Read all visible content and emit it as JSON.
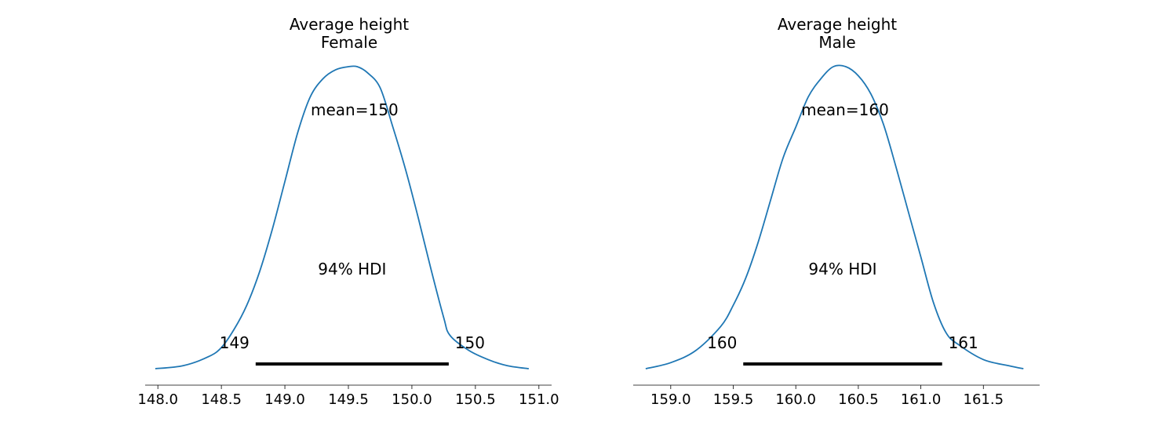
{
  "chart_data": [
    {
      "type": "area",
      "title": "Average height\nFemale",
      "title_lines": [
        "Average height",
        "Female"
      ],
      "xlim": [
        147.9,
        151.1
      ],
      "ticks": [
        "148.0",
        "148.5",
        "149.0",
        "149.5",
        "150.0",
        "150.5",
        "151.0"
      ],
      "tick_values": [
        148.0,
        148.5,
        149.0,
        149.5,
        150.0,
        150.5,
        151.0
      ],
      "mean_label": "mean=150",
      "hdi_label": "94% HDI",
      "hdi": [
        148.77,
        150.29
      ],
      "hdi_low_label": "149",
      "hdi_high_label": "150",
      "density": {
        "x": [
          147.98,
          148.2,
          148.4,
          148.5,
          148.6,
          148.7,
          148.8,
          148.9,
          149.0,
          149.1,
          149.2,
          149.3,
          149.4,
          149.5,
          149.57,
          149.65,
          149.75,
          149.85,
          149.95,
          150.05,
          150.15,
          150.25,
          150.3,
          150.45,
          150.6,
          150.75,
          150.92
        ],
        "y": [
          0.0,
          0.01,
          0.04,
          0.07,
          0.13,
          0.21,
          0.32,
          0.46,
          0.62,
          0.78,
          0.9,
          0.96,
          0.99,
          1.0,
          1.0,
          0.98,
          0.93,
          0.8,
          0.66,
          0.5,
          0.33,
          0.17,
          0.11,
          0.06,
          0.03,
          0.01,
          0.0
        ]
      },
      "color": "#1f77b4"
    },
    {
      "type": "area",
      "title": "Average height\nMale",
      "title_lines": [
        "Average height",
        "Male"
      ],
      "xlim": [
        158.7,
        161.95
      ],
      "ticks": [
        "159.0",
        "159.5",
        "160.0",
        "160.5",
        "161.0",
        "161.5"
      ],
      "tick_values": [
        159.0,
        159.5,
        160.0,
        160.5,
        161.0,
        161.5
      ],
      "mean_label": "mean=160",
      "hdi_label": "94% HDI",
      "hdi": [
        159.58,
        161.17
      ],
      "hdi_low_label": "160",
      "hdi_high_label": "161",
      "density": {
        "x": [
          158.8,
          159.0,
          159.2,
          159.4,
          159.5,
          159.6,
          159.7,
          159.8,
          159.9,
          160.0,
          160.1,
          160.2,
          160.3,
          160.4,
          160.5,
          160.6,
          160.7,
          160.8,
          160.9,
          161.0,
          161.1,
          161.2,
          161.3,
          161.5,
          161.7,
          161.82
        ],
        "y": [
          0.0,
          0.02,
          0.06,
          0.14,
          0.21,
          0.3,
          0.42,
          0.56,
          0.7,
          0.8,
          0.9,
          0.96,
          1.0,
          1.0,
          0.97,
          0.91,
          0.81,
          0.67,
          0.52,
          0.37,
          0.22,
          0.12,
          0.08,
          0.03,
          0.01,
          0.0
        ]
      },
      "color": "#1f77b4"
    }
  ]
}
